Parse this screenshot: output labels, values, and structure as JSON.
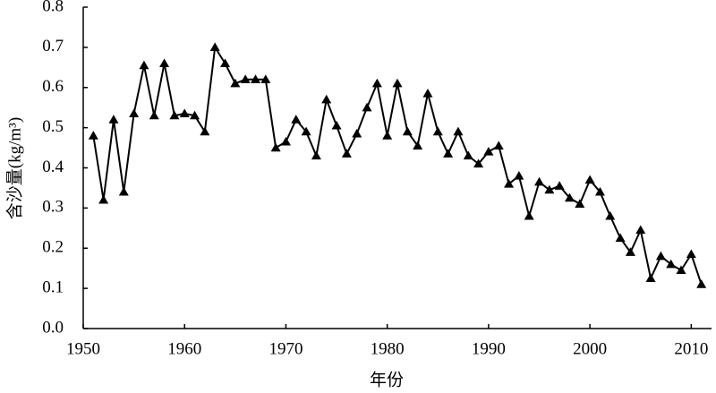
{
  "chart_data": {
    "type": "line",
    "y_label": "含沙量(kg/m³)",
    "x_label": "年份",
    "color": "#000000",
    "marker": "triangle",
    "x": [
      1951,
      1952,
      1953,
      1954,
      1955,
      1956,
      1957,
      1958,
      1959,
      1960,
      1961,
      1962,
      1963,
      1964,
      1965,
      1966,
      1967,
      1968,
      1969,
      1970,
      1971,
      1972,
      1973,
      1974,
      1975,
      1976,
      1977,
      1978,
      1979,
      1980,
      1981,
      1982,
      1983,
      1984,
      1985,
      1986,
      1987,
      1988,
      1989,
      1990,
      1991,
      1992,
      1993,
      1994,
      1995,
      1996,
      1997,
      1998,
      1999,
      2000,
      2001,
      2002,
      2003,
      2004,
      2005,
      2006,
      2007,
      2008,
      2009,
      2010,
      2011
    ],
    "values": [
      0.48,
      0.32,
      0.52,
      0.34,
      0.535,
      0.655,
      0.53,
      0.66,
      0.53,
      0.535,
      0.53,
      0.49,
      0.7,
      0.66,
      0.61,
      0.62,
      0.62,
      0.62,
      0.45,
      0.465,
      0.52,
      0.49,
      0.43,
      0.57,
      0.505,
      0.435,
      0.485,
      0.55,
      0.61,
      0.48,
      0.61,
      0.49,
      0.455,
      0.585,
      0.49,
      0.435,
      0.49,
      0.43,
      0.41,
      0.44,
      0.455,
      0.36,
      0.38,
      0.28,
      0.365,
      0.345,
      0.355,
      0.325,
      0.31,
      0.37,
      0.34,
      0.28,
      0.225,
      0.19,
      0.245,
      0.125,
      0.18,
      0.16,
      0.145,
      0.185,
      0.11
    ],
    "xlim": [
      1950,
      2012
    ],
    "xticks": [
      1950,
      1960,
      1970,
      1980,
      1990,
      2000,
      2010
    ],
    "ylim": [
      0,
      0.8
    ],
    "yticks": [
      {
        "value": 0,
        "label": "0.0"
      },
      0.1,
      0.2,
      0.3,
      0.4,
      0.5,
      0.6,
      0.7,
      0.8
    ]
  }
}
